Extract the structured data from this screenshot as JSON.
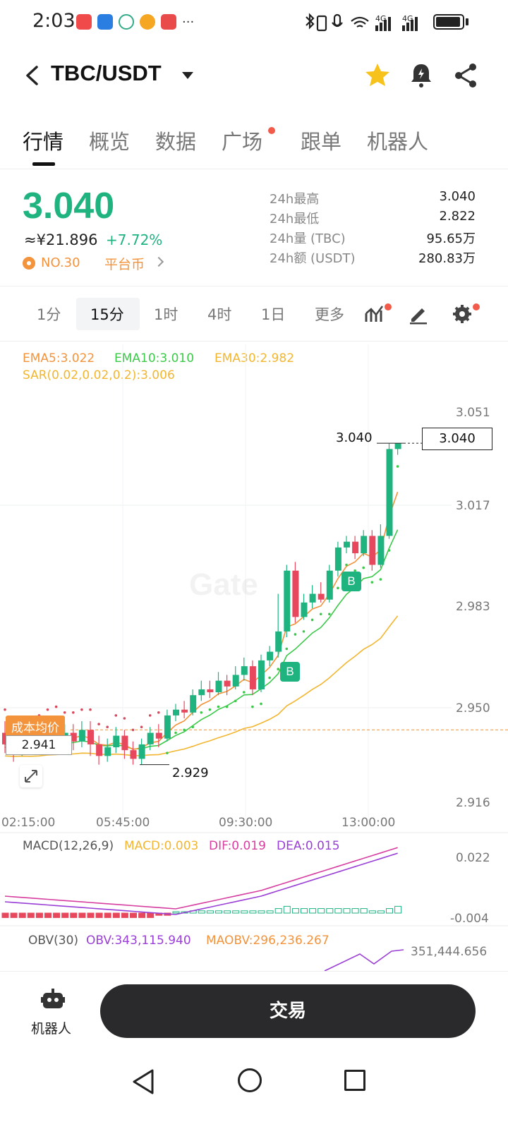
{
  "status_bar": {
    "time": "2:03",
    "more": "···",
    "net_1": "4G",
    "net_2": "4G"
  },
  "header": {
    "pair": "TBC/USDT"
  },
  "tabs": [
    "行情",
    "概览",
    "数据",
    "广场",
    "跟单",
    "机器人"
  ],
  "price": {
    "last": "3.040",
    "cny": "≈¥21.896",
    "change": "+7.72%",
    "rank": "NO.30",
    "tag": "平台币",
    "stats": [
      {
        "label": "24h最高",
        "value": "3.040"
      },
      {
        "label": "24h最低",
        "value": "2.822"
      },
      {
        "label": "24h量 (TBC)",
        "value": "95.65万"
      },
      {
        "label": "24h额 (USDT)",
        "value": "280.83万"
      }
    ]
  },
  "intervals": [
    "1分",
    "15分",
    "1时",
    "4时",
    "1日",
    "更多"
  ],
  "indicators": {
    "ema5": "EMA5:3.022",
    "ema10": "EMA10:3.010",
    "ema30": "EMA30:2.982",
    "sar": "SAR(0.02,0.02,0.2):3.006",
    "macd_title": "MACD(12,26,9)",
    "macd": "MACD:0.003",
    "dif": "DIF:0.019",
    "dea": "DEA:0.015",
    "obv_title": "OBV(30)",
    "obv": "OBV:343,115.940",
    "maobv": "MAOBV:296,236.267"
  },
  "chart": {
    "price_labels": [
      "3.051",
      "3.017",
      "2.983",
      "2.950",
      "2.916"
    ],
    "time_labels": [
      "02:15:00",
      "05:45:00",
      "09:30:00",
      "13:00:00"
    ],
    "last_price_box": "3.040",
    "high_label": "3.040",
    "low_label": "2.929",
    "cost_label": "成本均价",
    "cost_value": "2.941",
    "watermark": "Gate",
    "buy_marker": "B",
    "macd_axis": [
      "0.022",
      "-0.004"
    ],
    "obv_axis": "351,444.656",
    "colors": {
      "up": "#1fb380",
      "down": "#e8485d",
      "ema5": "#f3933b",
      "ema10": "#3cc94a",
      "ema30": "#f2b630",
      "sar": "#d9485d"
    }
  },
  "chart_data": {
    "type": "candlestick",
    "ylim": [
      2.916,
      3.051
    ],
    "candles": [
      [
        2.94,
        2.936,
        2.944,
        2.933
      ],
      [
        2.936,
        2.934,
        2.939,
        2.93
      ],
      [
        2.934,
        2.937,
        2.94,
        2.932
      ],
      [
        2.937,
        2.935,
        2.941,
        2.933
      ],
      [
        2.935,
        2.938,
        2.942,
        2.933
      ],
      [
        2.938,
        2.941,
        2.944,
        2.936
      ],
      [
        2.941,
        2.938,
        2.945,
        2.935
      ],
      [
        2.938,
        2.94,
        2.943,
        2.936
      ],
      [
        2.94,
        2.937,
        2.943,
        2.934
      ],
      [
        2.937,
        2.941,
        2.944,
        2.935
      ],
      [
        2.941,
        2.936,
        2.944,
        2.932
      ],
      [
        2.936,
        2.932,
        2.939,
        2.929
      ],
      [
        2.932,
        2.935,
        2.938,
        2.93
      ],
      [
        2.935,
        2.939,
        2.942,
        2.933
      ],
      [
        2.939,
        2.934,
        2.941,
        2.931
      ],
      [
        2.934,
        2.931,
        2.937,
        2.929
      ],
      [
        2.931,
        2.936,
        2.938,
        2.929
      ],
      [
        2.936,
        2.94,
        2.942,
        2.934
      ],
      [
        2.94,
        2.938,
        2.943,
        2.935
      ],
      [
        2.938,
        2.946,
        2.948,
        2.937
      ],
      [
        2.946,
        2.948,
        2.95,
        2.944
      ],
      [
        2.948,
        2.947,
        2.951,
        2.945
      ],
      [
        2.947,
        2.953,
        2.955,
        2.946
      ],
      [
        2.953,
        2.955,
        2.958,
        2.951
      ],
      [
        2.955,
        2.954,
        2.958,
        2.952
      ],
      [
        2.954,
        2.958,
        2.961,
        2.953
      ],
      [
        2.958,
        2.956,
        2.96,
        2.953
      ],
      [
        2.956,
        2.96,
        2.963,
        2.955
      ],
      [
        2.96,
        2.963,
        2.966,
        2.958
      ],
      [
        2.963,
        2.955,
        2.965,
        2.953
      ],
      [
        2.955,
        2.965,
        2.967,
        2.954
      ],
      [
        2.965,
        2.968,
        2.97,
        2.963
      ],
      [
        2.968,
        2.975,
        2.988,
        2.966
      ],
      [
        2.975,
        2.996,
        2.998,
        2.973
      ],
      [
        2.996,
        2.98,
        2.999,
        2.978
      ],
      [
        2.98,
        2.985,
        2.988,
        2.979
      ],
      [
        2.985,
        2.988,
        2.991,
        2.983
      ],
      [
        2.988,
        2.986,
        2.992,
        2.985
      ],
      [
        2.986,
        2.996,
        2.998,
        2.985
      ],
      [
        2.996,
        3.004,
        3.006,
        2.994
      ],
      [
        3.004,
        3.006,
        3.008,
        3.002
      ],
      [
        3.006,
        3.002,
        3.008,
        3.0
      ],
      [
        3.002,
        3.008,
        3.01,
        3.001
      ],
      [
        3.008,
        2.998,
        3.01,
        2.996
      ],
      [
        2.998,
        3.008,
        3.012,
        2.997
      ],
      [
        3.008,
        3.038,
        3.04,
        3.007
      ],
      [
        3.038,
        3.04,
        3.04,
        3.036
      ]
    ],
    "macd_hist": [
      -0.002,
      -0.002,
      -0.002,
      -0.002,
      -0.002,
      -0.002,
      -0.002,
      -0.002,
      -0.002,
      -0.002,
      -0.002,
      -0.002,
      -0.002,
      -0.002,
      -0.002,
      -0.002,
      -0.002,
      -0.002,
      -0.001,
      -0.001,
      0.0,
      0.0,
      0.001,
      0.001,
      0.001,
      0.001,
      0.001,
      0.001,
      0.001,
      0.001,
      0.001,
      0.001,
      0.002,
      0.003,
      0.002,
      0.002,
      0.002,
      0.002,
      0.002,
      0.002,
      0.002,
      0.002,
      0.002,
      0.001,
      0.001,
      0.002,
      0.003
    ]
  }
}
